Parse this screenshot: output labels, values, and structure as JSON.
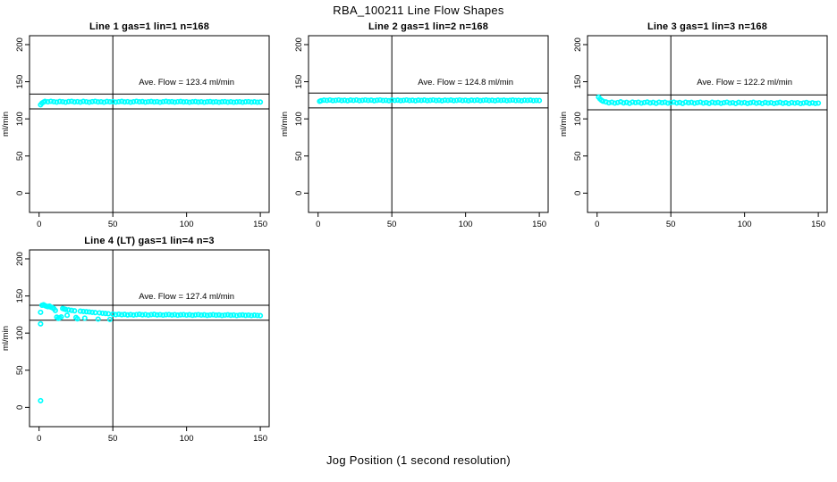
{
  "page": {
    "title": "RBA_100211  Line Flow Shapes",
    "xlabel": "Jog Position (1 second resolution)"
  },
  "style": {
    "point_color": "#00FFFF",
    "axis_color": "#000000",
    "background": "#FFFFFF"
  },
  "chart_data": [
    {
      "type": "scatter",
      "title": "Line 1 gas=1 lin=1 n=168",
      "annotation": "Ave. Flow =  123.4  ml/min",
      "ave_flow": 123.4,
      "ref_lines": [
        133.4,
        113.4
      ],
      "vline": 50,
      "ylabel": "ml/min",
      "xticks": [
        0,
        50,
        100,
        150
      ],
      "yticks": [
        0,
        50,
        100,
        150,
        200
      ],
      "xlim": [
        -6.5,
        156
      ],
      "ylim": [
        -26,
        212
      ],
      "points": [
        [
          1,
          119.0
        ],
        [
          2,
          121.3
        ],
        [
          3,
          122.6
        ],
        [
          4,
          123.5
        ],
        [
          6,
          122.9
        ],
        [
          8,
          123.6
        ],
        [
          10,
          123.1
        ],
        [
          12,
          122.6
        ],
        [
          14,
          123.4
        ],
        [
          16,
          123.0
        ],
        [
          18,
          122.5
        ],
        [
          20,
          123.3
        ],
        [
          22,
          123.7
        ],
        [
          24,
          122.8
        ],
        [
          26,
          123.2
        ],
        [
          28,
          122.6
        ],
        [
          30,
          123.5
        ],
        [
          32,
          123.0
        ],
        [
          34,
          122.4
        ],
        [
          36,
          123.2
        ],
        [
          38,
          123.6
        ],
        [
          40,
          122.8
        ],
        [
          42,
          123.1
        ],
        [
          44,
          122.5
        ],
        [
          46,
          123.4
        ],
        [
          48,
          122.9
        ],
        [
          50,
          123.2
        ],
        [
          52,
          122.6
        ],
        [
          54,
          123.0
        ],
        [
          56,
          123.5
        ],
        [
          58,
          122.8
        ],
        [
          60,
          123.2
        ],
        [
          62,
          122.5
        ],
        [
          64,
          123.1
        ],
        [
          66,
          123.6
        ],
        [
          68,
          122.9
        ],
        [
          70,
          123.3
        ],
        [
          72,
          122.6
        ],
        [
          74,
          123.0
        ],
        [
          76,
          123.4
        ],
        [
          78,
          122.8
        ],
        [
          80,
          123.2
        ],
        [
          82,
          122.5
        ],
        [
          84,
          123.0
        ],
        [
          86,
          123.5
        ],
        [
          88,
          122.9
        ],
        [
          90,
          123.2
        ],
        [
          92,
          122.6
        ],
        [
          94,
          123.1
        ],
        [
          96,
          123.4
        ],
        [
          98,
          122.8
        ],
        [
          100,
          123.1
        ],
        [
          102,
          122.5
        ],
        [
          104,
          123.0
        ],
        [
          106,
          123.3
        ],
        [
          108,
          122.7
        ],
        [
          110,
          123.1
        ],
        [
          112,
          122.5
        ],
        [
          114,
          122.9
        ],
        [
          116,
          123.3
        ],
        [
          118,
          122.7
        ],
        [
          120,
          123.0
        ],
        [
          122,
          122.4
        ],
        [
          124,
          122.9
        ],
        [
          126,
          123.2
        ],
        [
          128,
          122.6
        ],
        [
          130,
          123.0
        ],
        [
          132,
          122.4
        ],
        [
          134,
          122.8
        ],
        [
          136,
          123.1
        ],
        [
          138,
          122.5
        ],
        [
          140,
          122.9
        ],
        [
          142,
          123.2
        ],
        [
          144,
          122.6
        ],
        [
          146,
          122.9
        ],
        [
          148,
          122.4
        ],
        [
          150,
          122.7
        ]
      ]
    },
    {
      "type": "scatter",
      "title": "Line 2 gas=1 lin=2 n=168",
      "annotation": "Ave. Flow =  124.8  ml/min",
      "ave_flow": 124.8,
      "ref_lines": [
        134.8,
        114.8
      ],
      "vline": 50,
      "ylabel": "ml/min",
      "xticks": [
        0,
        50,
        100,
        150
      ],
      "yticks": [
        0,
        50,
        100,
        150,
        200
      ],
      "xlim": [
        -6.5,
        156
      ],
      "ylim": [
        -26,
        212
      ],
      "points": [
        [
          1,
          123.6
        ],
        [
          2,
          124.5
        ],
        [
          4,
          125.2
        ],
        [
          6,
          124.8
        ],
        [
          8,
          125.4
        ],
        [
          10,
          124.6
        ],
        [
          12,
          125.0
        ],
        [
          14,
          125.5
        ],
        [
          16,
          124.7
        ],
        [
          18,
          125.1
        ],
        [
          20,
          124.5
        ],
        [
          22,
          125.3
        ],
        [
          24,
          124.9
        ],
        [
          26,
          125.4
        ],
        [
          28,
          124.6
        ],
        [
          30,
          125.0
        ],
        [
          32,
          125.5
        ],
        [
          34,
          124.8
        ],
        [
          36,
          125.2
        ],
        [
          38,
          124.5
        ],
        [
          40,
          125.1
        ],
        [
          42,
          125.4
        ],
        [
          44,
          124.7
        ],
        [
          46,
          125.0
        ],
        [
          48,
          124.5
        ],
        [
          50,
          125.3
        ],
        [
          52,
          124.8
        ],
        [
          54,
          125.2
        ],
        [
          56,
          124.6
        ],
        [
          58,
          125.0
        ],
        [
          60,
          125.4
        ],
        [
          62,
          124.7
        ],
        [
          64,
          125.1
        ],
        [
          66,
          124.5
        ],
        [
          68,
          125.2
        ],
        [
          70,
          124.8
        ],
        [
          72,
          125.3
        ],
        [
          74,
          124.6
        ],
        [
          76,
          125.0
        ],
        [
          78,
          125.4
        ],
        [
          80,
          124.7
        ],
        [
          82,
          125.1
        ],
        [
          84,
          124.5
        ],
        [
          86,
          125.2
        ],
        [
          88,
          124.8
        ],
        [
          90,
          125.3
        ],
        [
          92,
          124.6
        ],
        [
          94,
          125.0
        ],
        [
          96,
          125.4
        ],
        [
          98,
          124.7
        ],
        [
          100,
          125.1
        ],
        [
          102,
          124.5
        ],
        [
          104,
          125.2
        ],
        [
          106,
          124.8
        ],
        [
          108,
          125.3
        ],
        [
          110,
          124.6
        ],
        [
          112,
          125.0
        ],
        [
          114,
          125.3
        ],
        [
          116,
          124.7
        ],
        [
          118,
          125.1
        ],
        [
          120,
          124.5
        ],
        [
          122,
          125.2
        ],
        [
          124,
          124.8
        ],
        [
          126,
          125.2
        ],
        [
          128,
          124.6
        ],
        [
          130,
          125.0
        ],
        [
          132,
          125.3
        ],
        [
          134,
          124.7
        ],
        [
          136,
          125.0
        ],
        [
          138,
          124.5
        ],
        [
          140,
          125.1
        ],
        [
          142,
          124.8
        ],
        [
          144,
          125.2
        ],
        [
          146,
          124.6
        ],
        [
          148,
          124.9
        ],
        [
          150,
          124.7
        ]
      ]
    },
    {
      "type": "scatter",
      "title": "Line 3 gas=1 lin=3 n=168",
      "annotation": "Ave. Flow =  122.2  ml/min",
      "ave_flow": 122.2,
      "ref_lines": [
        132.2,
        112.2
      ],
      "vline": 50,
      "ylabel": "ml/min",
      "xticks": [
        0,
        50,
        100,
        150
      ],
      "yticks": [
        0,
        50,
        100,
        150,
        200
      ],
      "xlim": [
        -6.5,
        156
      ],
      "ylim": [
        -26,
        212
      ],
      "points": [
        [
          1,
          129.2
        ],
        [
          2,
          126.8
        ],
        [
          3,
          125.0
        ],
        [
          4,
          123.8
        ],
        [
          6,
          122.8
        ],
        [
          8,
          121.6
        ],
        [
          10,
          122.4
        ],
        [
          12,
          121.2
        ],
        [
          14,
          122.0
        ],
        [
          16,
          122.9
        ],
        [
          18,
          121.5
        ],
        [
          20,
          122.2
        ],
        [
          22,
          121.0
        ],
        [
          24,
          122.6
        ],
        [
          26,
          121.8
        ],
        [
          28,
          122.4
        ],
        [
          30,
          121.3
        ],
        [
          32,
          122.0
        ],
        [
          34,
          122.7
        ],
        [
          36,
          121.5
        ],
        [
          38,
          122.2
        ],
        [
          40,
          121.0
        ],
        [
          42,
          122.5
        ],
        [
          44,
          121.7
        ],
        [
          46,
          122.3
        ],
        [
          48,
          121.2
        ],
        [
          50,
          121.9
        ],
        [
          52,
          122.6
        ],
        [
          54,
          121.4
        ],
        [
          56,
          122.1
        ],
        [
          58,
          120.9
        ],
        [
          60,
          122.4
        ],
        [
          62,
          121.6
        ],
        [
          64,
          122.2
        ],
        [
          66,
          121.1
        ],
        [
          68,
          121.8
        ],
        [
          70,
          122.5
        ],
        [
          72,
          121.3
        ],
        [
          74,
          122.0
        ],
        [
          76,
          120.9
        ],
        [
          78,
          122.3
        ],
        [
          80,
          121.5
        ],
        [
          82,
          122.1
        ],
        [
          84,
          121.0
        ],
        [
          86,
          121.7
        ],
        [
          88,
          122.4
        ],
        [
          90,
          121.2
        ],
        [
          92,
          121.9
        ],
        [
          94,
          120.8
        ],
        [
          96,
          122.2
        ],
        [
          98,
          121.4
        ],
        [
          100,
          122.0
        ],
        [
          102,
          120.9
        ],
        [
          104,
          121.6
        ],
        [
          106,
          122.3
        ],
        [
          108,
          121.1
        ],
        [
          110,
          121.8
        ],
        [
          112,
          120.8
        ],
        [
          114,
          122.1
        ],
        [
          116,
          121.3
        ],
        [
          118,
          121.9
        ],
        [
          120,
          120.8
        ],
        [
          122,
          121.5
        ],
        [
          124,
          122.2
        ],
        [
          126,
          121.0
        ],
        [
          128,
          121.7
        ],
        [
          130,
          120.7
        ],
        [
          132,
          122.0
        ],
        [
          134,
          121.2
        ],
        [
          136,
          121.8
        ],
        [
          138,
          120.7
        ],
        [
          140,
          121.4
        ],
        [
          142,
          122.1
        ],
        [
          144,
          120.9
        ],
        [
          146,
          121.6
        ],
        [
          148,
          120.8
        ],
        [
          150,
          121.3
        ]
      ]
    },
    {
      "type": "scatter",
      "title": "Line 4 (LT) gas=1 lin=4 n=3",
      "annotation": "Ave. Flow =  127.4  ml/min",
      "ave_flow": 127.4,
      "ref_lines": [
        137.4,
        117.4
      ],
      "vline": 50,
      "ylabel": "ml/min",
      "xticks": [
        0,
        50,
        100,
        150
      ],
      "yticks": [
        0,
        50,
        100,
        150,
        200
      ],
      "xlim": [
        -6.5,
        156
      ],
      "ylim": [
        -26,
        212
      ],
      "points": [
        [
          1,
          9.0
        ],
        [
          1,
          112.5
        ],
        [
          1,
          128.0
        ],
        [
          2,
          137.5
        ],
        [
          3,
          138.2
        ],
        [
          4,
          137.0
        ],
        [
          5,
          136.2
        ],
        [
          6,
          135.6
        ],
        [
          7,
          136.4
        ],
        [
          8,
          135.0
        ],
        [
          9,
          134.2
        ],
        [
          10,
          133.0
        ],
        [
          11,
          130.5
        ],
        [
          12,
          121.5
        ],
        [
          13,
          119.8
        ],
        [
          14,
          120.5
        ],
        [
          15,
          121.8
        ],
        [
          16,
          133.2
        ],
        [
          17,
          132.4
        ],
        [
          18,
          131.8
        ],
        [
          19,
          124.0
        ],
        [
          20,
          131.2
        ],
        [
          22,
          130.6
        ],
        [
          24,
          130.0
        ],
        [
          25,
          121.0
        ],
        [
          26,
          119.2
        ],
        [
          28,
          129.6
        ],
        [
          30,
          129.2
        ],
        [
          31,
          120.2
        ],
        [
          32,
          128.8
        ],
        [
          34,
          128.4
        ],
        [
          36,
          128.0
        ],
        [
          38,
          127.6
        ],
        [
          40,
          118.8
        ],
        [
          41,
          127.2
        ],
        [
          43,
          126.8
        ],
        [
          45,
          126.4
        ],
        [
          47,
          126.0
        ],
        [
          48,
          118.4
        ],
        [
          50,
          125.6
        ],
        [
          52,
          124.9
        ],
        [
          54,
          125.4
        ],
        [
          56,
          124.7
        ],
        [
          58,
          125.2
        ],
        [
          60,
          124.5
        ],
        [
          62,
          125.0
        ],
        [
          64,
          124.4
        ],
        [
          66,
          124.9
        ],
        [
          68,
          125.3
        ],
        [
          70,
          124.6
        ],
        [
          72,
          125.0
        ],
        [
          74,
          124.3
        ],
        [
          76,
          124.8
        ],
        [
          78,
          125.2
        ],
        [
          80,
          124.5
        ],
        [
          82,
          124.9
        ],
        [
          84,
          124.2
        ],
        [
          86,
          124.7
        ],
        [
          88,
          125.0
        ],
        [
          90,
          124.4
        ],
        [
          92,
          124.8
        ],
        [
          94,
          124.1
        ],
        [
          96,
          124.6
        ],
        [
          98,
          124.9
        ],
        [
          100,
          124.3
        ],
        [
          102,
          124.7
        ],
        [
          104,
          124.0
        ],
        [
          106,
          124.5
        ],
        [
          108,
          124.8
        ],
        [
          110,
          124.2
        ],
        [
          112,
          124.6
        ],
        [
          114,
          123.9
        ],
        [
          116,
          124.4
        ],
        [
          118,
          124.7
        ],
        [
          120,
          124.1
        ],
        [
          122,
          124.5
        ],
        [
          124,
          123.8
        ],
        [
          126,
          124.3
        ],
        [
          128,
          124.6
        ],
        [
          130,
          124.0
        ],
        [
          132,
          124.4
        ],
        [
          134,
          123.7
        ],
        [
          136,
          124.2
        ],
        [
          138,
          124.5
        ],
        [
          140,
          123.9
        ],
        [
          142,
          124.3
        ],
        [
          144,
          123.6
        ],
        [
          146,
          124.1
        ],
        [
          148,
          123.8
        ],
        [
          150,
          123.5
        ]
      ]
    }
  ]
}
